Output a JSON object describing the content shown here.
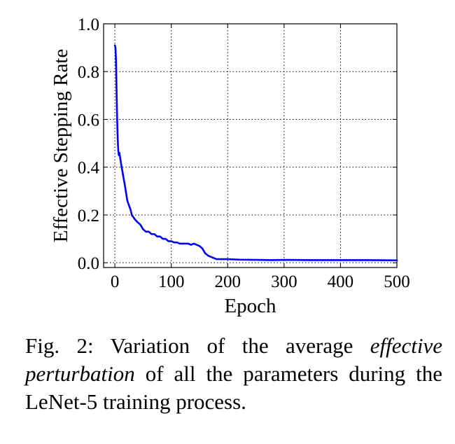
{
  "chart_data": {
    "type": "line",
    "title": "",
    "xlabel": "Epoch",
    "ylabel": "Effective Stepping Rate",
    "xlim": [
      -20,
      500
    ],
    "ylim": [
      -0.02,
      1.0
    ],
    "xticks": [
      0,
      100,
      200,
      300,
      400,
      500
    ],
    "yticks": [
      0.0,
      0.2,
      0.4,
      0.6,
      0.8,
      1.0
    ],
    "xtick_labels": [
      "0",
      "100",
      "200",
      "300",
      "400",
      "500"
    ],
    "ytick_labels": [
      "0.0",
      "0.2",
      "0.4",
      "0.6",
      "0.8",
      "1.0"
    ],
    "grid": true,
    "line_color": "#0000ff",
    "series": [
      {
        "x": [
          0,
          1,
          2,
          3,
          4,
          5,
          6,
          7,
          8,
          10,
          12,
          15,
          18,
          20,
          22,
          25,
          28,
          30,
          33,
          36,
          40,
          45,
          50,
          55,
          60,
          65,
          70,
          75,
          80,
          85,
          90,
          95,
          100,
          105,
          110,
          115,
          120,
          125,
          130,
          135,
          140,
          145,
          150,
          155,
          160,
          165,
          170,
          175,
          180,
          190,
          200,
          220,
          250,
          280,
          300,
          350,
          400,
          450,
          500
        ],
        "y": [
          0.91,
          0.9,
          0.85,
          0.72,
          0.6,
          0.52,
          0.47,
          0.45,
          0.46,
          0.43,
          0.4,
          0.36,
          0.32,
          0.29,
          0.26,
          0.24,
          0.22,
          0.2,
          0.19,
          0.18,
          0.17,
          0.16,
          0.14,
          0.13,
          0.13,
          0.12,
          0.12,
          0.11,
          0.11,
          0.1,
          0.1,
          0.09,
          0.09,
          0.085,
          0.085,
          0.08,
          0.08,
          0.08,
          0.08,
          0.075,
          0.08,
          0.075,
          0.07,
          0.06,
          0.04,
          0.03,
          0.025,
          0.02,
          0.015,
          0.015,
          0.015,
          0.013,
          0.012,
          0.011,
          0.012,
          0.011,
          0.011,
          0.011,
          0.01
        ]
      }
    ]
  },
  "caption": {
    "prefix": "Fig. 2: Variation of the average ",
    "emphasis": "effective perturbation",
    "suffix": " of all the parameters during the LeNet-5 training process."
  }
}
